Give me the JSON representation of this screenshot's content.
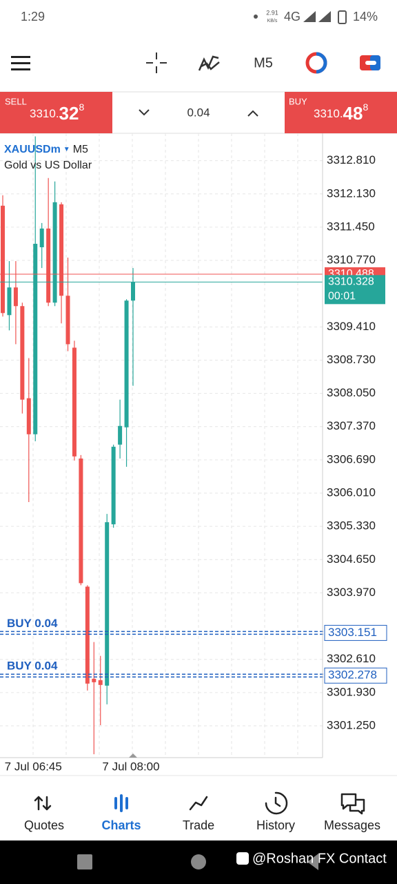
{
  "status_bar": {
    "time": "1:29",
    "net_speed": "2.91",
    "net_unit": "KB/s",
    "network": "4G",
    "battery": "14%"
  },
  "toolbar": {
    "timeframe": "M5"
  },
  "trade_panel": {
    "sell": {
      "label": "SELL",
      "price_main": "3310.",
      "price_big": "32",
      "price_sup": "8"
    },
    "volume": "0.04",
    "buy": {
      "label": "BUY",
      "price_main": "3310.",
      "price_big": "48",
      "price_sup": "8"
    }
  },
  "chart_data": {
    "type": "candlestick",
    "symbol": "XAUUSDm",
    "timeframe": "M5",
    "description": "Gold vs US Dollar",
    "categories": [
      null,
      null,
      null,
      null,
      null,
      "7 Jul 06:45",
      null,
      null,
      null,
      null,
      null,
      null,
      null,
      null,
      null,
      null,
      null,
      null,
      null,
      null,
      "7 Jul 08:00"
    ],
    "open": [
      3311.889,
      3309.651,
      3310.217,
      3309.835,
      3307.951,
      3307.214,
      3311.039,
      3311.422,
      3309.906,
      3311.917,
      3310.047,
      3308.985,
      3306.718,
      3304.097,
      3302.213,
      3302.185,
      3302.072,
      3305.372,
      3307.002,
      3307.356,
      3309.948
    ],
    "high": [
      3312.102,
      3310.756,
      3310.756,
      3309.906,
      3308.772,
      3313.306,
      3311.535,
      3312.456,
      3312.385,
      3311.96,
      3310.827,
      3309.127,
      3306.789,
      3304.126,
      3302.964,
      3302.681,
      3305.585,
      3307.002,
      3307.922,
      3309.977,
      3310.614
    ],
    "low": [
      3309.622,
      3309.339,
      3309.056,
      3307.639,
      3305.826,
      3307.072,
      3310.614,
      3309.835,
      3309.835,
      3309.481,
      3308.914,
      3306.676,
      3304.126,
      3301.972,
      3300.669,
      3301.264,
      3301.689,
      3305.302,
      3306.718,
      3306.548,
      3308.206
    ],
    "close": [
      3309.693,
      3310.217,
      3309.835,
      3307.922,
      3307.214,
      3311.11,
      3311.422,
      3309.906,
      3311.96,
      3310.047,
      3309.056,
      3306.761,
      3304.168,
      3302.114,
      3302.142,
      3302.086,
      3305.415,
      3306.959,
      3307.384,
      3309.948,
      3310.328
    ],
    "up_color": "#26a69a",
    "down_color": "#ef5350",
    "ylim": [
      3300.6,
      3313.37
    ],
    "yticks": [
      {
        "value": 3312.81,
        "label": "3312.810"
      },
      {
        "value": 3312.13,
        "label": "3312.130"
      },
      {
        "value": 3311.45,
        "label": "3311.450"
      },
      {
        "value": 3310.77,
        "label": "3310.770"
      },
      {
        "value": 3309.41,
        "label": "3309.410"
      },
      {
        "value": 3308.73,
        "label": "3308.730"
      },
      {
        "value": 3308.05,
        "label": "3308.050"
      },
      {
        "value": 3307.37,
        "label": "3307.370"
      },
      {
        "value": 3306.69,
        "label": "3306.690"
      },
      {
        "value": 3306.01,
        "label": "3306.010"
      },
      {
        "value": 3305.33,
        "label": "3305.330"
      },
      {
        "value": 3304.65,
        "label": "3304.650"
      },
      {
        "value": 3303.97,
        "label": "3303.970"
      },
      {
        "value": 3302.61,
        "label": "3302.610"
      },
      {
        "value": 3301.93,
        "label": "3301.930"
      },
      {
        "value": 3301.25,
        "label": "3301.250"
      }
    ],
    "grid": true,
    "ask": {
      "value": 3310.488,
      "color": "#ef5350"
    },
    "bid": {
      "value": 3310.328,
      "color": "#26a69a",
      "countdown": "00:01"
    },
    "orders": [
      {
        "label": "BUY 0.04",
        "price": 3303.151
      },
      {
        "label": "BUY 0.04",
        "price": 3302.278
      }
    ],
    "order_color": "#1f5fbf"
  },
  "bottom_nav": {
    "items": [
      "Quotes",
      "Charts",
      "Trade",
      "History",
      "Messages"
    ],
    "active": 1
  },
  "watermark": "@Roshan FX Contact"
}
